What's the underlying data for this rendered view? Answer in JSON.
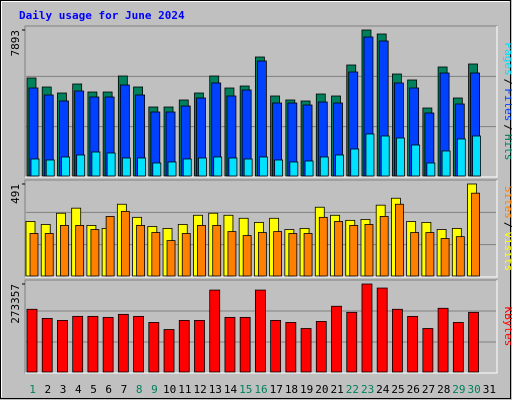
{
  "chart_data": {
    "type": "bar",
    "title": "Daily usage for June 2024",
    "categories": [
      "1",
      "2",
      "3",
      "4",
      "5",
      "6",
      "7",
      "8",
      "9",
      "10",
      "11",
      "12",
      "13",
      "14",
      "15",
      "16",
      "17",
      "18",
      "19",
      "20",
      "21",
      "22",
      "23",
      "24",
      "25",
      "26",
      "27",
      "28",
      "29",
      "30",
      "31"
    ],
    "weekend_days": [
      1,
      8,
      9,
      15,
      16,
      22,
      23,
      29,
      30
    ],
    "weekend_color": "#00805c",
    "legend_separator": "/",
    "panels": [
      {
        "ylim": [
          0,
          7893
        ],
        "yticks": [
          7893
        ],
        "series": [
          {
            "name": "Hits",
            "color": "#00805c",
            "values": [
              5298,
              4811,
              4487,
              4974,
              4541,
              4541,
              5406,
              4811,
              3730,
              3730,
              4109,
              4487,
              5406,
              4757,
              4865,
              6433,
              4325,
              4109,
              4055,
              4433,
              4325,
              6001,
              7893,
              7677,
              5514,
              5190,
              3676,
              5893,
              4217,
              6055,
              null
            ]
          },
          {
            "name": "Files",
            "color": "#0040ff",
            "values": [
              4757,
              4379,
              4055,
              4595,
              4271,
              4271,
              4919,
              4379,
              3460,
              3460,
              3784,
              4217,
              5028,
              4325,
              4649,
              6217,
              3946,
              3946,
              3838,
              4000,
              3946,
              5622,
              7514,
              7298,
              5028,
              4757,
              3406,
              5568,
              3892,
              5568,
              null
            ]
          },
          {
            "name": "Pages",
            "color": "#00e0ff",
            "values": [
              919,
              865,
              1027,
              1135,
              1297,
              1243,
              973,
              973,
              703,
              757,
              919,
              973,
              1027,
              973,
              919,
              1027,
              865,
              757,
              811,
              1027,
              1135,
              1460,
              2271,
              2162,
              2054,
              1676,
              703,
              1352,
              2000,
              2162,
              null
            ]
          }
        ]
      },
      {
        "ylim": [
          0,
          491
        ],
        "yticks": [
          491
        ],
        "series": [
          {
            "name": "Visits",
            "color": "#ffff00",
            "values": [
              291,
              275,
              335,
              362,
              270,
              254,
              383,
              313,
              264,
              254,
              275,
              324,
              335,
              324,
              308,
              286,
              308,
              248,
              254,
              367,
              324,
              297,
              302,
              378,
              415,
              291,
              286,
              248,
              254,
              491,
              null
            ]
          },
          {
            "name": "Sites",
            "color": "#ff8000",
            "values": [
              227,
              227,
              270,
              270,
              248,
              318,
              345,
              270,
              232,
              189,
              227,
              270,
              270,
              237,
              216,
              232,
              237,
              227,
              227,
              313,
              291,
              270,
              275,
              318,
              383,
              232,
              232,
              200,
              210,
              442,
              null
            ]
          }
        ]
      },
      {
        "ylim": [
          0,
          273357
        ],
        "yticks": [
          273357
        ],
        "series": [
          {
            "name": "KBytes",
            "color": "#ff0000",
            "values": [
              194804,
              166526,
              160242,
              172810,
              172810,
              169668,
              179094,
              172810,
              153958,
              131964,
              160242,
              160242,
              254502,
              169668,
              169668,
              254502,
              160242,
              153958,
              135106,
              157100,
              204230,
              185378,
              273357,
              260786,
              194804,
              172810,
              135106,
              197946,
              153958,
              185378,
              null
            ]
          }
        ]
      }
    ]
  }
}
